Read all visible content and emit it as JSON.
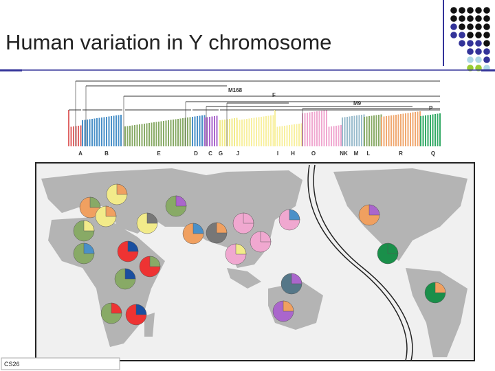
{
  "header": {
    "title": "Human variation in Y chromosome"
  },
  "tree": {
    "haplogroups": [
      "A",
      "B",
      "E",
      "D",
      "C",
      "G",
      "J",
      "I",
      "H",
      "O",
      "NK",
      "M",
      "L",
      "R",
      "Q"
    ],
    "markers": [
      "M168",
      "F",
      "M9",
      "P"
    ]
  },
  "footer": {
    "label": "CS26"
  }
}
